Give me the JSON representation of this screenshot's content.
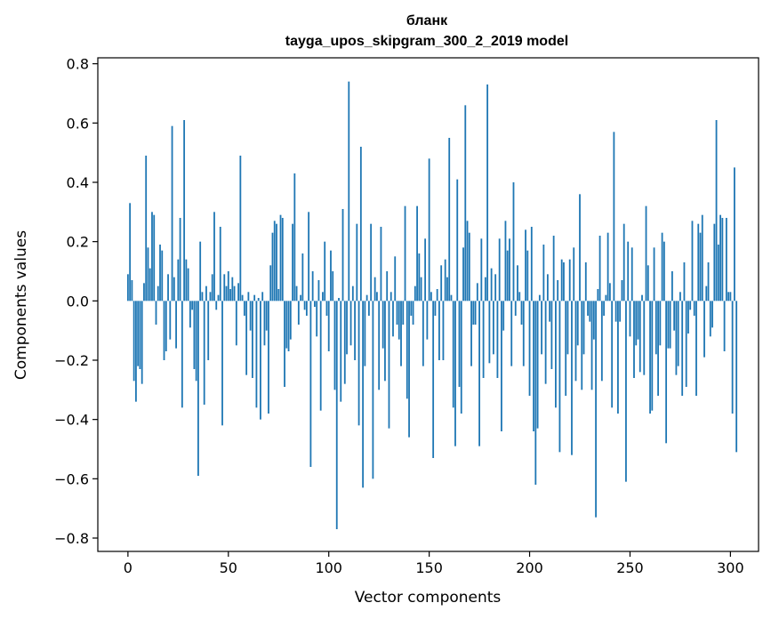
{
  "chart_data": {
    "type": "bar",
    "title": "бланк",
    "subtitle": "tayga_upos_skipgram_300_2_2019 model",
    "xlabel": "Vector components",
    "ylabel": "Components values",
    "xlim": [
      -15,
      314
    ],
    "ylim": [
      -0.845,
      0.82
    ],
    "xticks": [
      0,
      50,
      100,
      150,
      200,
      250,
      300
    ],
    "yticks": [
      -0.8,
      -0.6,
      -0.4,
      -0.2,
      0.0,
      0.2,
      0.4,
      0.6,
      0.8
    ],
    "ytick_labels": [
      "−0.8",
      "−0.6",
      "−0.4",
      "−0.2",
      "0.0",
      "0.2",
      "0.4",
      "0.6",
      "0.8"
    ],
    "bar_color": "#1f77b4",
    "grid": false,
    "values": [
      0.09,
      0.33,
      0.07,
      -0.27,
      -0.34,
      -0.22,
      -0.23,
      -0.28,
      0.06,
      0.49,
      0.18,
      0.11,
      0.3,
      0.29,
      -0.08,
      0.05,
      0.19,
      0.17,
      -0.2,
      -0.17,
      0.09,
      -0.13,
      0.59,
      0.08,
      -0.16,
      0.14,
      0.28,
      -0.36,
      0.61,
      0.14,
      0.11,
      -0.09,
      -0.03,
      -0.23,
      -0.27,
      -0.59,
      0.2,
      0.03,
      -0.35,
      0.05,
      -0.2,
      0.03,
      0.09,
      0.3,
      -0.03,
      0.02,
      0.25,
      -0.42,
      0.09,
      0.05,
      0.1,
      0.04,
      0.08,
      0.05,
      -0.15,
      0.06,
      0.49,
      0.02,
      -0.05,
      -0.25,
      0.03,
      -0.1,
      -0.26,
      0.02,
      -0.36,
      0.01,
      -0.4,
      0.03,
      -0.15,
      -0.1,
      -0.38,
      0.12,
      0.23,
      0.27,
      0.26,
      0.04,
      0.29,
      0.28,
      -0.29,
      -0.16,
      -0.17,
      -0.13,
      0.26,
      0.43,
      0.05,
      -0.08,
      0.02,
      0.16,
      -0.03,
      -0.05,
      0.3,
      -0.56,
      0.1,
      -0.02,
      -0.12,
      0.07,
      -0.37,
      0.03,
      0.2,
      -0.05,
      -0.17,
      0.17,
      0.1,
      -0.3,
      -0.77,
      0.01,
      -0.34,
      0.31,
      -0.28,
      -0.18,
      0.74,
      -0.15,
      0.05,
      -0.2,
      0.26,
      -0.42,
      0.52,
      -0.63,
      -0.22,
      0.02,
      -0.05,
      0.26,
      -0.6,
      0.08,
      0.03,
      -0.3,
      0.25,
      -0.16,
      -0.27,
      0.1,
      -0.43,
      0.03,
      -0.12,
      0.15,
      -0.08,
      -0.13,
      -0.22,
      -0.08,
      0.32,
      -0.33,
      -0.46,
      -0.05,
      -0.08,
      0.05,
      0.32,
      0.16,
      0.08,
      -0.22,
      0.21,
      -0.13,
      0.48,
      0.03,
      -0.53,
      -0.05,
      0.04,
      -0.2,
      0.12,
      -0.2,
      0.14,
      0.08,
      0.55,
      0.02,
      -0.36,
      -0.49,
      0.41,
      -0.29,
      -0.38,
      0.18,
      0.66,
      0.27,
      0.23,
      -0.22,
      -0.08,
      -0.08,
      0.06,
      -0.49,
      0.21,
      -0.26,
      0.08,
      0.73,
      -0.21,
      0.11,
      -0.18,
      0.09,
      -0.26,
      0.21,
      -0.44,
      -0.1,
      0.27,
      0.17,
      0.21,
      -0.22,
      0.4,
      -0.05,
      0.12,
      0.03,
      -0.08,
      -0.22,
      0.24,
      0.17,
      -0.32,
      0.25,
      -0.44,
      -0.62,
      -0.43,
      0.02,
      -0.18,
      0.19,
      -0.28,
      0.09,
      -0.07,
      -0.23,
      0.22,
      -0.36,
      0.07,
      -0.51,
      0.14,
      0.13,
      -0.32,
      -0.18,
      0.14,
      -0.52,
      0.18,
      -0.27,
      -0.15,
      0.36,
      -0.3,
      -0.18,
      0.13,
      -0.05,
      -0.07,
      -0.3,
      -0.13,
      -0.73,
      0.04,
      0.22,
      -0.27,
      -0.05,
      0.02,
      0.23,
      0.06,
      -0.36,
      0.57,
      -0.07,
      -0.38,
      -0.07,
      0.07,
      0.26,
      -0.61,
      0.2,
      -0.12,
      0.18,
      -0.26,
      -0.15,
      -0.13,
      -0.24,
      0.02,
      -0.25,
      0.32,
      0.12,
      -0.38,
      -0.37,
      0.18,
      -0.18,
      -0.32,
      -0.15,
      0.23,
      0.2,
      -0.48,
      -0.16,
      -0.16,
      0.1,
      -0.1,
      -0.25,
      -0.22,
      0.03,
      -0.32,
      0.13,
      -0.29,
      -0.11,
      -0.03,
      0.27,
      -0.05,
      -0.32,
      0.26,
      0.23,
      0.29,
      -0.19,
      0.05,
      0.13,
      -0.12,
      -0.09,
      0.26,
      0.61,
      0.19,
      0.29,
      0.28,
      -0.17,
      0.28,
      0.03,
      0.03,
      -0.38,
      0.45,
      -0.51
    ]
  }
}
